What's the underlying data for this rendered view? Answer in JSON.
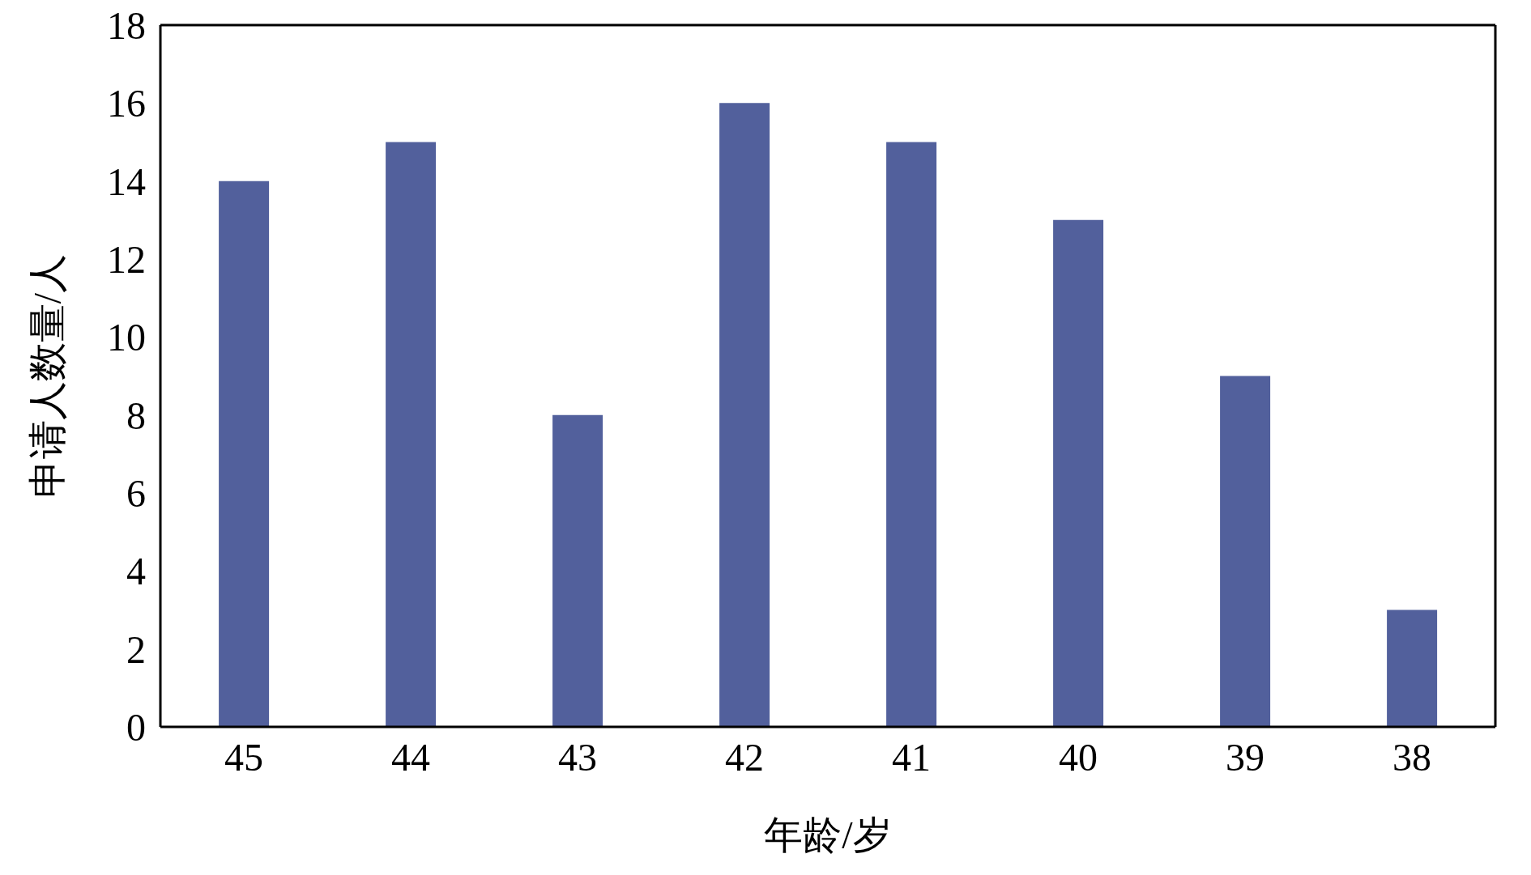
{
  "chart_data": {
    "type": "bar",
    "xlabel": "年龄/岁",
    "ylabel": "申请人数量/人",
    "categories": [
      "45",
      "44",
      "43",
      "42",
      "41",
      "40",
      "39",
      "38"
    ],
    "values": [
      14,
      15,
      8,
      16,
      15,
      13,
      9,
      3
    ],
    "color": "#52609c",
    "ylim": [
      0,
      18
    ],
    "yticks": [
      0,
      2,
      4,
      6,
      8,
      10,
      12,
      14,
      16,
      18
    ],
    "grid": false,
    "legend": false
  }
}
